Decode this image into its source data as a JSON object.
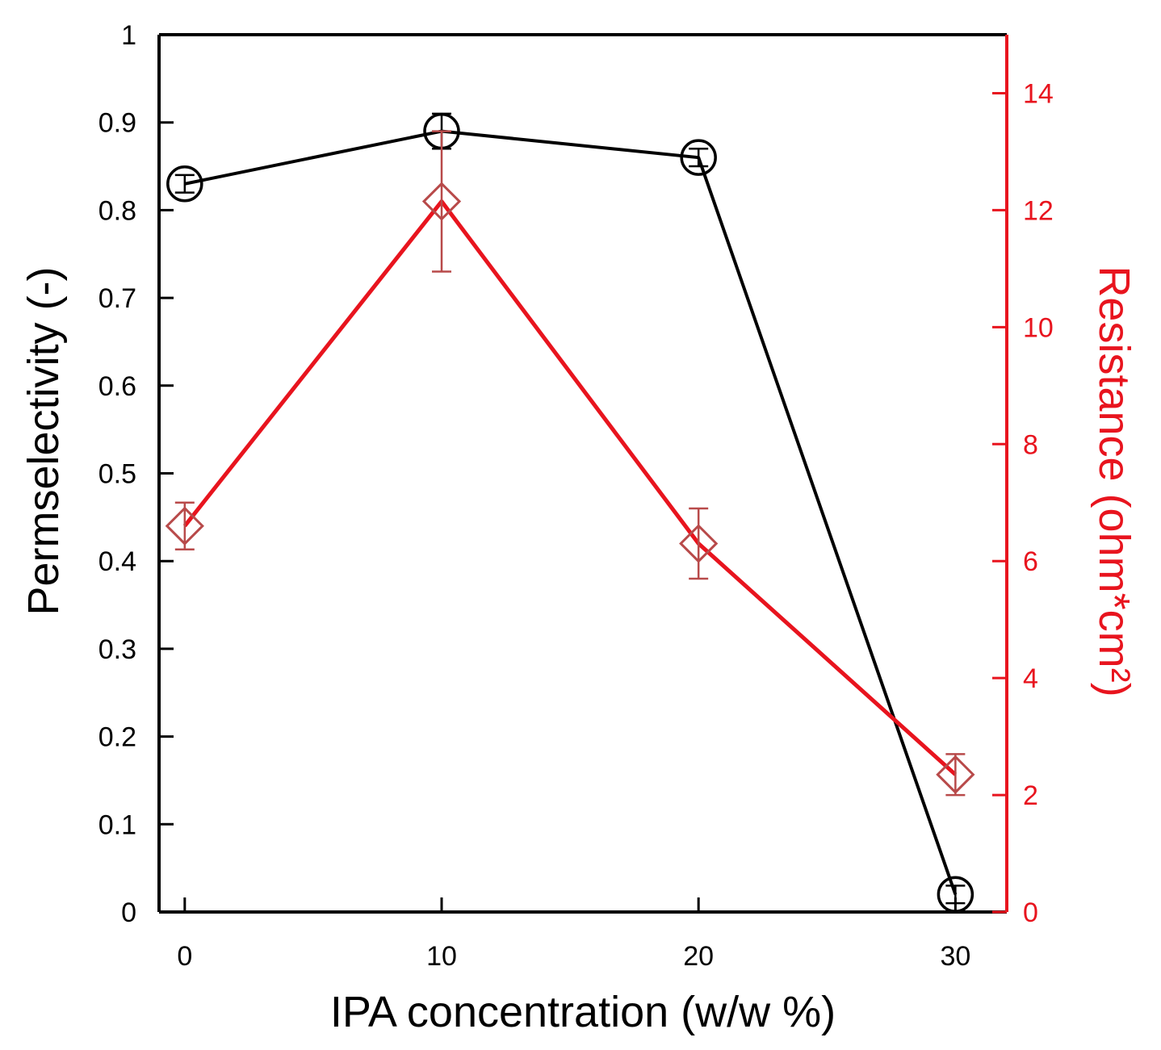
{
  "chart_data": {
    "type": "line",
    "title": "",
    "xlabel": "IPA concentration (w/w %)",
    "ylabel_left": "Permselectivity (-)",
    "ylabel_right": "Resistance (ohm*cm²)",
    "xlim": [
      -1,
      32
    ],
    "ylim_left": [
      0,
      1
    ],
    "ylim_right": [
      0,
      15
    ],
    "x_ticks": [
      0,
      10,
      20,
      30
    ],
    "x_tick_labels": [
      "0",
      "10",
      "20",
      "30"
    ],
    "y_left_ticks": [
      0,
      0.1,
      0.2,
      0.3,
      0.4,
      0.5,
      0.6,
      0.7,
      0.8,
      0.9,
      1
    ],
    "y_left_tick_labels": [
      "0",
      "0.1",
      "0.2",
      "0.3",
      "0.4",
      "0.5",
      "0.6",
      "0.7",
      "0.8",
      "0.9",
      "1"
    ],
    "y_right_ticks": [
      0,
      2,
      4,
      6,
      8,
      10,
      12,
      14
    ],
    "y_right_tick_labels": [
      "0",
      "2",
      "4",
      "6",
      "8",
      "10",
      "12",
      "14"
    ],
    "grid": false,
    "series": [
      {
        "name": "Permselectivity",
        "axis": "left",
        "color": "#000000",
        "marker": "circle",
        "x": [
          0,
          10,
          20,
          30
        ],
        "y": [
          0.83,
          0.89,
          0.86,
          0.02
        ],
        "error": [
          0.01,
          0.02,
          0.01,
          0.01
        ]
      },
      {
        "name": "Resistance",
        "axis": "right",
        "color": "#e8141e",
        "error_color": "#b84a4a",
        "marker": "diamond",
        "x": [
          0,
          10,
          20,
          30
        ],
        "y": [
          6.6,
          12.15,
          6.3,
          2.35
        ],
        "error": [
          0.4,
          1.2,
          0.6,
          0.35
        ]
      }
    ]
  }
}
